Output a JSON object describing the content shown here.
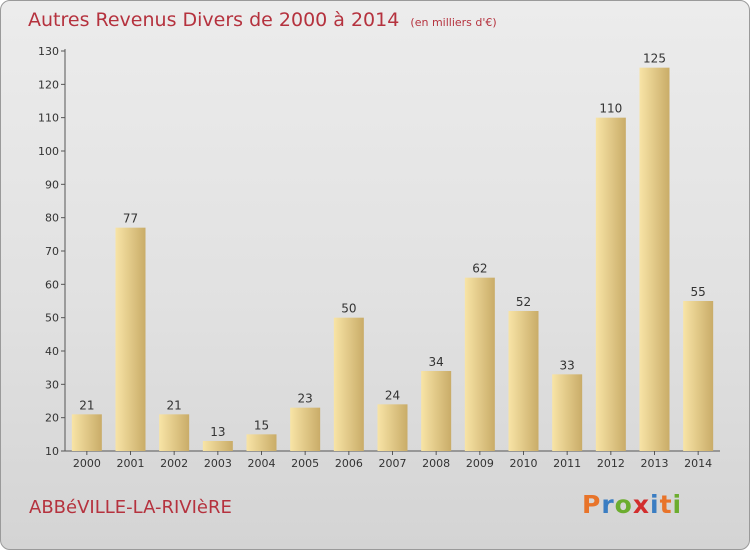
{
  "header": {
    "title": "Autres Revenus Divers de 2000 à 2014",
    "unit": "(en milliers d'€)"
  },
  "footer": {
    "commune": "ABBéVILLE-LA-RIVIèRE",
    "brand": "Proxiti",
    "brand_colors": [
      "#e8742a",
      "#3a7dc2",
      "#6cad2f",
      "#d22e2e",
      "#3a7dc2",
      "#e8742a",
      "#6cad2f"
    ]
  },
  "chart_data": {
    "type": "bar",
    "categories": [
      "2000",
      "2001",
      "2002",
      "2003",
      "2004",
      "2005",
      "2006",
      "2007",
      "2008",
      "2009",
      "2010",
      "2011",
      "2012",
      "2013",
      "2014"
    ],
    "values": [
      21,
      77,
      21,
      13,
      15,
      23,
      50,
      24,
      34,
      62,
      52,
      33,
      110,
      125,
      55
    ],
    "title": "Autres Revenus Divers de 2000 à 2014",
    "subtitle": "(en milliers d'€)",
    "ylim": [
      10,
      130
    ],
    "yticks": [
      10,
      20,
      30,
      40,
      50,
      60,
      70,
      80,
      90,
      100,
      110,
      120,
      130
    ],
    "grid": false,
    "bar_color_light": "#f8e4a6",
    "bar_color_dark": "#c9ac68"
  }
}
